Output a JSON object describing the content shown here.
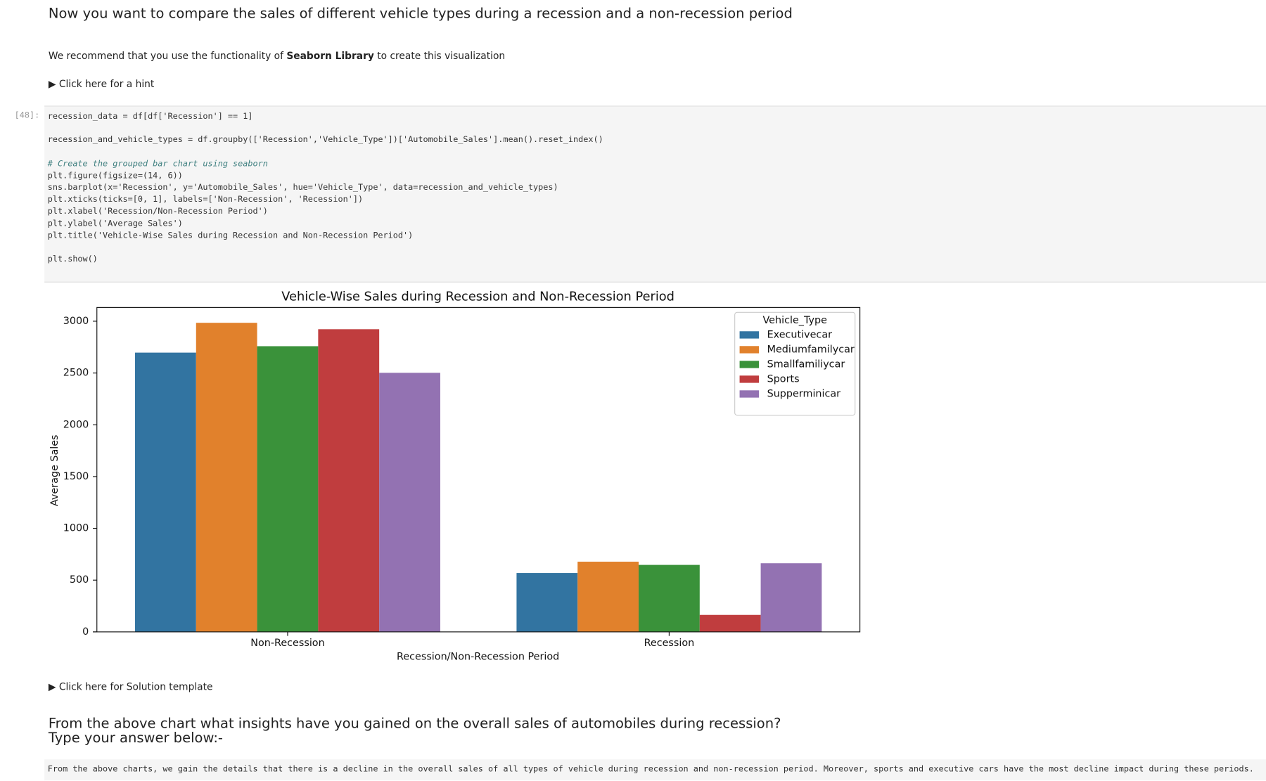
{
  "header": {
    "title": "Now you want to compare the sales of different vehicle types during a recession and a non-recession period"
  },
  "recommendation": {
    "before": "We recommend that you use the functionality of",
    "bold": "Seaborn Library",
    "after": "to create this visualization"
  },
  "hint": "Click here for a hint",
  "cell": {
    "prompt": "[48]:",
    "blocks": [
      [
        "recession_data = df[df['Recession'] == 1]"
      ],
      [
        "recession_and_vehicle_types = df.groupby(['Recession','Vehicle_Type'])['Automobile_Sales'].mean().reset_index()"
      ],
      [
        "# Create the grouped bar chart using seaborn",
        "plt.figure(figsize=(14, 6))",
        "sns.barplot(x='Recession', y='Automobile_Sales', hue='Vehicle_Type', data=recession_and_vehicle_types)",
        "plt.xticks(ticks=[0, 1], labels=['Non-Recession', 'Recession'])",
        "plt.xlabel('Recession/Non-Recession Period')",
        "plt.ylabel('Average Sales')",
        "plt.title('Vehicle-Wise Sales during Recession and Non-Recession Period')"
      ],
      [
        "plt.show()"
      ]
    ]
  },
  "chart_data": {
    "type": "bar",
    "title": "Vehicle-Wise Sales during Recession and Non-Recession Period",
    "x_label": "Recession/Non-Recession Period",
    "y_label": "Average Sales",
    "categories": [
      "Non-Recession",
      "Recession"
    ],
    "legend_title": "Vehicle_Type",
    "legend_position": "upper right",
    "series": [
      {
        "name": "Executivecar",
        "color": "#3274a1",
        "values": [
          2697,
          569
        ]
      },
      {
        "name": "Mediumfamilycar",
        "color": "#e1812c",
        "values": [
          2985,
          678
        ]
      },
      {
        "name": "Smallfamiliycar",
        "color": "#3a923a",
        "values": [
          2759,
          647
        ]
      },
      {
        "name": "Sports",
        "color": "#c03d3e",
        "values": [
          2923,
          164
        ]
      },
      {
        "name": "Supperminicar",
        "color": "#9372b2",
        "values": [
          2502,
          663
        ]
      }
    ],
    "ylim": [
      0,
      3133
    ],
    "yticks": [
      0,
      500,
      1000,
      1500,
      2000,
      2500,
      3000
    ],
    "grid": false
  },
  "solution": "Click here for Solution template",
  "question": {
    "line1": "From the above chart what insights have you gained on the overall sales of automobiles during recession?",
    "line2": "Type your answer below:-"
  },
  "answer": "From the above charts, we gain the details that there is a decline in the overall sales of all types of vehicle during recession and non-recession period. Moreover, sports and executive cars have the most decline impact during these periods."
}
